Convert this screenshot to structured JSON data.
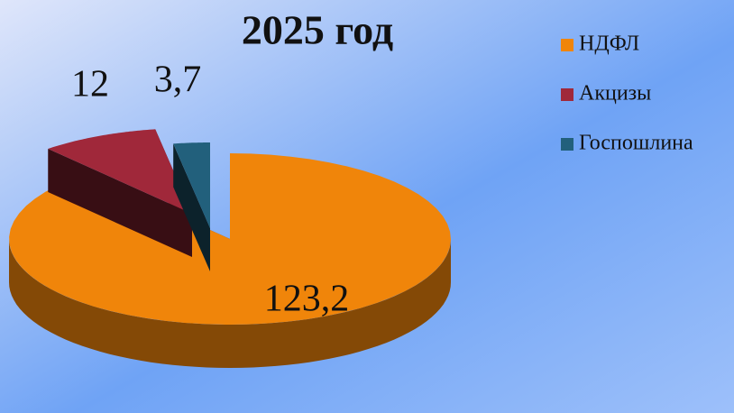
{
  "chart_data": {
    "type": "pie3d",
    "title": "2025 год",
    "categories": [
      "НДФЛ",
      "Акцизы",
      "Госпошлина"
    ],
    "values": [
      123.2,
      12,
      3.7
    ],
    "value_labels": [
      "123,2",
      "12",
      "3,7"
    ],
    "colors": [
      "#f0850a",
      "#a0283a",
      "#22607c"
    ],
    "legend": "right"
  }
}
